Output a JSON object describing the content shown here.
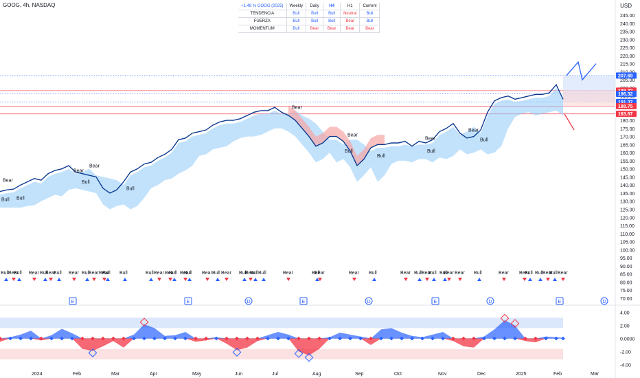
{
  "header": {
    "symbol": "GOOG, 4h, NASDAQ",
    "currency": "USD"
  },
  "signal_table": {
    "headers": [
      "+1.48 % GOOG (2025)",
      "Weekly",
      "Daily",
      "H4",
      "H1",
      "Current"
    ],
    "selected_col": 3,
    "rows": [
      {
        "label": "TENDENCIA",
        "values": [
          "Bull",
          "Bull",
          "Bull",
          "Neutral",
          "Bull"
        ]
      },
      {
        "label": "FUERZA",
        "values": [
          "Bull",
          "Bull",
          "Bull",
          "Bear",
          "Bull"
        ]
      },
      {
        "label": "MOMENTUM",
        "values": [
          "Bull",
          "Bear",
          "Bear",
          "Bear",
          "Bear"
        ]
      }
    ]
  },
  "colors": {
    "bull": "#2962ff",
    "bear": "#f23645",
    "cloud_bull": "#90caf9",
    "cloud_bear": "#f7a5a5",
    "grid": "#f0f3fa"
  },
  "chart_data": [
    {
      "type": "line",
      "name": "price",
      "title": "",
      "xlabel": "",
      "ylabel": "",
      "ylim": [
        68,
        250
      ],
      "y_tick_labels": [
        "245.00",
        "240.00",
        "235.00",
        "230.00",
        "225.00",
        "220.00",
        "215.00",
        "210.00",
        "205.00",
        "200.00",
        "195.00",
        "190.00",
        "185.00",
        "180.00",
        "175.00",
        "170.00",
        "165.00",
        "160.00",
        "155.00",
        "150.00",
        "145.00",
        "140.00",
        "135.00",
        "130.00",
        "125.00",
        "120.00",
        "115.00",
        "110.00",
        "105.00",
        "100.00",
        "95.00",
        "90.00",
        "85.00",
        "80.00",
        "75.00",
        "70.00"
      ],
      "x_tick_labels": [
        "5",
        "2024",
        "Feb",
        "Mar",
        "Apr",
        "May",
        "Jun",
        "Jul",
        "Aug",
        "Sep",
        "Oct",
        "Nov",
        "Dec",
        "2025",
        "Feb",
        "Mar"
      ],
      "series": [
        {
          "values_note": "close",
          "x": [
            0,
            10,
            20,
            30,
            40,
            50,
            60,
            70,
            80,
            90,
            100,
            110,
            120,
            130,
            140,
            150,
            160,
            170,
            180,
            190,
            200,
            210,
            220,
            230,
            240,
            250,
            260,
            270,
            280,
            290,
            300,
            310,
            320,
            330,
            340,
            350,
            360,
            370,
            380,
            390,
            400,
            410,
            420,
            430,
            440,
            450,
            460,
            470,
            480,
            490,
            500,
            510,
            520,
            530,
            540,
            550,
            560,
            570,
            580,
            590,
            600,
            610,
            620,
            630,
            640,
            650,
            660,
            670,
            680,
            690,
            700,
            710,
            720,
            730,
            740,
            750,
            760,
            770,
            780,
            790,
            800,
            810,
            820
          ],
          "values": [
            136,
            137,
            137.5,
            140,
            142,
            144,
            143,
            147,
            149,
            150,
            152,
            148,
            147,
            146,
            145,
            138,
            135,
            137,
            142,
            148,
            150,
            153,
            154,
            157,
            159,
            162,
            168,
            169,
            172,
            173,
            174,
            177,
            179,
            180,
            180,
            181,
            183,
            185,
            186,
            186,
            188,
            185,
            183,
            180,
            175,
            170,
            164,
            166,
            170,
            170,
            167,
            161,
            152,
            156,
            163,
            165,
            165,
            166,
            166,
            167,
            164,
            167,
            166,
            168,
            173,
            175,
            178,
            172,
            169,
            170,
            174,
            185,
            192,
            194,
            195,
            193,
            194,
            195,
            196,
            196,
            197,
            202,
            193
          ]
        }
      ],
      "price_labels": [
        {
          "value": 207.69,
          "text": "207.69",
          "color": "#2962ff"
        },
        {
          "value": 198.32,
          "text": "198.32",
          "color": "#f23645"
        },
        {
          "value": 196.32,
          "text": "196.32",
          "color": "#2962ff"
        },
        {
          "value": 191.37,
          "text": "191.37",
          "color": "#2962ff"
        },
        {
          "value": 188.75,
          "text": "188.75",
          "color": "#f23645"
        },
        {
          "value": 183.97,
          "text": "183.97",
          "color": "#f23645"
        }
      ],
      "annotations": [
        {
          "text": "Bear",
          "x": 12,
          "value": 142
        },
        {
          "text": "Bull",
          "x": 10,
          "value": 130
        },
        {
          "text": "Bull",
          "x": 32,
          "value": 131
        },
        {
          "text": "Bear",
          "x": 115,
          "value": 148
        },
        {
          "text": "Bear",
          "x": 138,
          "value": 151
        },
        {
          "text": "Bull",
          "x": 127,
          "value": 141
        },
        {
          "text": "Bull",
          "x": 192,
          "value": 137
        },
        {
          "text": "Bear",
          "x": 433,
          "value": 187
        },
        {
          "text": "Bear",
          "x": 514,
          "value": 170
        },
        {
          "text": "Bull",
          "x": 510,
          "value": 160
        },
        {
          "text": "Bull",
          "x": 557,
          "value": 157
        },
        {
          "text": "Bear",
          "x": 627,
          "value": 168
        },
        {
          "text": "Bull",
          "x": 630,
          "value": 160
        },
        {
          "text": "Bear",
          "x": 690,
          "value": 173
        },
        {
          "text": "Bull",
          "x": 707,
          "value": 167
        }
      ],
      "signal_labels": [
        {
          "x": 9,
          "text": "Bull"
        },
        {
          "x": 20,
          "text": "Bear"
        },
        {
          "x": 28,
          "text": "Bull"
        },
        {
          "x": 50,
          "text": "Bear"
        },
        {
          "x": 66,
          "text": "Bull"
        },
        {
          "x": 74,
          "text": "Bear"
        },
        {
          "x": 86,
          "text": "Bull"
        },
        {
          "x": 108,
          "text": "Bear"
        },
        {
          "x": 127,
          "text": "Bull"
        },
        {
          "x": 137,
          "text": "Bear"
        },
        {
          "x": 152,
          "text": "Bear"
        },
        {
          "x": 157,
          "text": "Bull"
        },
        {
          "x": 182,
          "text": "Bull"
        },
        {
          "x": 220,
          "text": "Bull"
        },
        {
          "x": 232,
          "text": "Bear"
        },
        {
          "x": 248,
          "text": "Bear"
        },
        {
          "x": 254,
          "text": "Bull"
        },
        {
          "x": 270,
          "text": "Bear"
        },
        {
          "x": 276,
          "text": "Bull"
        },
        {
          "x": 302,
          "text": "Bear"
        },
        {
          "x": 317,
          "text": "Bull"
        },
        {
          "x": 330,
          "text": "Bear"
        },
        {
          "x": 356,
          "text": "Bull"
        },
        {
          "x": 365,
          "text": "Bear"
        },
        {
          "x": 372,
          "text": "Bull"
        },
        {
          "x": 384,
          "text": "Bull"
        },
        {
          "x": 420,
          "text": "Bear"
        },
        {
          "x": 462,
          "text": "Bull"
        },
        {
          "x": 466,
          "text": "Bear"
        },
        {
          "x": 516,
          "text": "Bear"
        },
        {
          "x": 545,
          "text": "Bull"
        },
        {
          "x": 591,
          "text": "Bear"
        },
        {
          "x": 611,
          "text": "Bull"
        },
        {
          "x": 622,
          "text": "Bear"
        },
        {
          "x": 632,
          "text": "Bull"
        },
        {
          "x": 648,
          "text": "Bull"
        },
        {
          "x": 654,
          "text": "Bear"
        },
        {
          "x": 670,
          "text": "Bear"
        },
        {
          "x": 698,
          "text": "Bull"
        },
        {
          "x": 734,
          "text": "Bear"
        },
        {
          "x": 764,
          "text": "Bear"
        },
        {
          "x": 772,
          "text": "Bull"
        },
        {
          "x": 787,
          "text": "Bull"
        },
        {
          "x": 798,
          "text": "Bear"
        },
        {
          "x": 808,
          "text": "Bull"
        },
        {
          "x": 820,
          "text": "Bear"
        }
      ],
      "event_markers": [
        {
          "x": 106,
          "text": "E"
        },
        {
          "x": 274,
          "text": "E"
        },
        {
          "x": 362,
          "text": "D"
        },
        {
          "x": 442,
          "text": "E"
        },
        {
          "x": 537,
          "text": "D"
        },
        {
          "x": 634,
          "text": "E"
        },
        {
          "x": 714,
          "text": "D"
        },
        {
          "x": 815,
          "text": "E"
        },
        {
          "x": 880,
          "text": "D"
        }
      ]
    },
    {
      "type": "area",
      "name": "oscillator",
      "ylim": [
        -4.6,
        4.6
      ],
      "y_tick_labels": [
        "4.00",
        "2.00",
        "0.0000",
        "-2.00",
        "-4.00"
      ],
      "x": [
        0,
        15,
        30,
        45,
        60,
        75,
        90,
        105,
        120,
        135,
        150,
        165,
        180,
        195,
        210,
        225,
        240,
        255,
        270,
        285,
        300,
        315,
        330,
        345,
        360,
        375,
        390,
        405,
        420,
        435,
        450,
        465,
        480,
        495,
        510,
        525,
        540,
        555,
        570,
        585,
        600,
        615,
        630,
        645,
        660,
        675,
        690,
        705,
        720,
        735,
        750,
        765,
        780,
        795,
        810,
        820
      ],
      "values": [
        -0.5,
        0.2,
        0.6,
        1.2,
        -0.3,
        0.5,
        1.5,
        0.8,
        -1.6,
        -1.9,
        -1.2,
        -0.4,
        -1.4,
        0.6,
        2.2,
        1.6,
        0.4,
        0.5,
        1.0,
        -0.5,
        -0.3,
        0.2,
        -0.8,
        -1.8,
        -1.4,
        -0.4,
        0.5,
        1.0,
        0.6,
        -2.0,
        -2.6,
        -1.6,
        0.2,
        0.9,
        0.6,
        0.3,
        -1.0,
        1.4,
        1.6,
        0.9,
        0.4,
        0.2,
        0.6,
        1.0,
        -0.4,
        -1.2,
        -1.4,
        0.3,
        1.4,
        2.8,
        2.0,
        -0.4,
        -0.6,
        0.3,
        0.2,
        0.1
      ]
    }
  ]
}
